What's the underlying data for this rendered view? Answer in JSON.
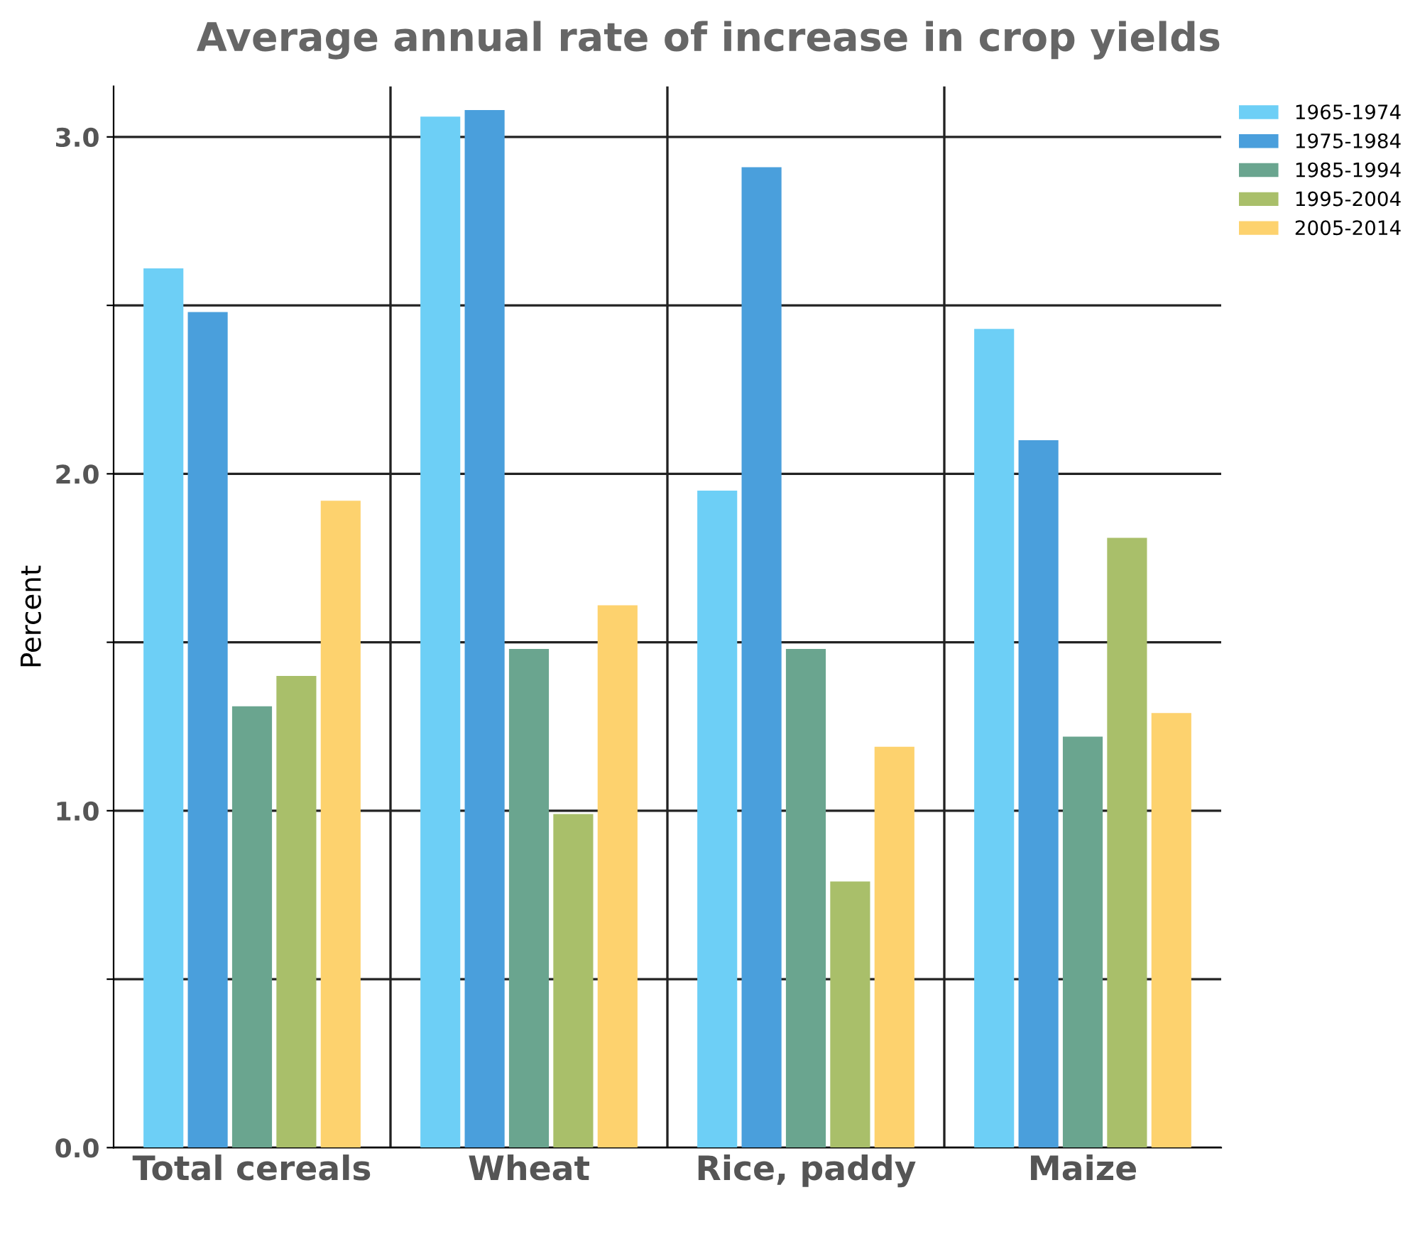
{
  "chart_data": {
    "type": "bar",
    "title": "Average annual rate of increase in crop yields",
    "ylabel": "Percent",
    "categories": [
      "Total cereals",
      "Wheat",
      "Rice, paddy",
      "Maize"
    ],
    "series": [
      {
        "name": "1965-1974",
        "color": "#6dcff6",
        "values": [
          2.61,
          3.06,
          1.95,
          2.43
        ]
      },
      {
        "name": "1975-1984",
        "color": "#4a9fdc",
        "values": [
          2.48,
          3.08,
          2.91,
          2.1
        ]
      },
      {
        "name": "1985-1994",
        "color": "#6aa58f",
        "values": [
          1.31,
          1.48,
          1.48,
          1.22
        ]
      },
      {
        "name": "1995-2004",
        "color": "#a9bf6a",
        "values": [
          1.4,
          0.99,
          0.79,
          1.81
        ]
      },
      {
        "name": "2005-2014",
        "color": "#fdd26e",
        "values": [
          1.92,
          1.61,
          1.19,
          1.29
        ]
      }
    ],
    "ylim": [
      0,
      3.15
    ],
    "yticks": [
      {
        "value": 0,
        "label": "0.0"
      },
      {
        "value": 0.5,
        "label": null
      },
      {
        "value": 1,
        "label": "1.0"
      },
      {
        "value": 1.5,
        "label": null
      },
      {
        "value": 2,
        "label": "2.0"
      },
      {
        "value": 2.5,
        "label": null
      },
      {
        "value": 3,
        "label": "3.0"
      }
    ],
    "grid": true,
    "legend": "top right"
  }
}
